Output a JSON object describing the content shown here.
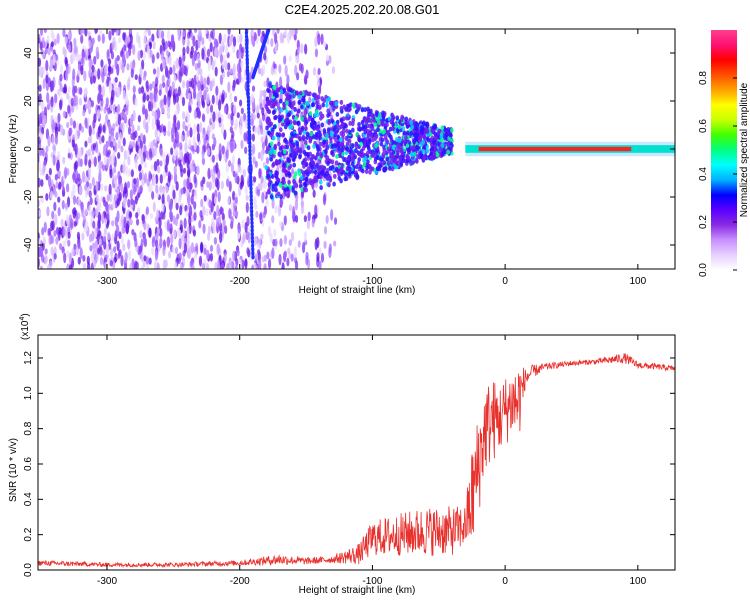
{
  "title": "C2E4.2025.202.20.08.G01",
  "colors": {
    "snr_line": "#e8302c",
    "colorbar": [
      "#ffffff",
      "#e8d0ff",
      "#c890ff",
      "#8a2be2",
      "#5a00ff",
      "#0000ff",
      "#00b0ff",
      "#00ffff",
      "#00ff80",
      "#40ff00",
      "#c8ff00",
      "#ffff00",
      "#ffa000",
      "#ff5000",
      "#ff0000",
      "#ff1070",
      "#ff4090"
    ]
  },
  "chart_data": [
    {
      "type": "heatmap",
      "xlabel": "Height of straight line (km)",
      "ylabel": "Frequency (Hz)",
      "xlim": [
        -352,
        128
      ],
      "ylim": [
        -50,
        50
      ],
      "x_ticks": [
        -300,
        -200,
        -100,
        0,
        100
      ],
      "y_ticks": [
        -40,
        -20,
        0,
        20,
        40
      ],
      "grid": false,
      "colorbar": {
        "label": "Normalized spectral amplitude",
        "range": [
          0,
          1
        ],
        "ticks": [
          "0.0",
          "0.2",
          "0.4",
          "0.6",
          "0.8"
        ]
      }
    },
    {
      "type": "line",
      "xlabel": "Height of straight line (km)",
      "ylabel": "SNR (10 * v/v)",
      "multiplier": "(x10",
      "multiplier_exp": "4",
      "multiplier_close": ")",
      "xlim": [
        -352,
        128
      ],
      "ylim": [
        0,
        1.33
      ],
      "x_ticks": [
        -300,
        -200,
        -100,
        0,
        100
      ],
      "y_ticks": [
        "0.0",
        "0.2",
        "0.4",
        "0.6",
        "0.8",
        "1.0",
        "1.2"
      ],
      "grid": false,
      "series_profile": {
        "x": [
          -352,
          -300,
          -250,
          -200,
          -170,
          -150,
          -130,
          -110,
          -100,
          -80,
          -60,
          -40,
          -30,
          -25,
          -20,
          -15,
          -10,
          -5,
          0,
          5,
          10,
          15,
          20,
          30,
          50,
          70,
          90,
          100,
          128
        ],
        "y": [
          0.04,
          0.03,
          0.03,
          0.04,
          0.06,
          0.05,
          0.06,
          0.09,
          0.18,
          0.2,
          0.22,
          0.22,
          0.25,
          0.4,
          0.6,
          0.8,
          0.85,
          0.85,
          0.9,
          0.95,
          0.95,
          1.08,
          1.12,
          1.15,
          1.17,
          1.18,
          1.2,
          1.16,
          1.14
        ],
        "noise": [
          0.015,
          0.012,
          0.012,
          0.015,
          0.03,
          0.02,
          0.02,
          0.06,
          0.1,
          0.12,
          0.14,
          0.14,
          0.12,
          0.3,
          0.3,
          0.25,
          0.25,
          0.2,
          0.2,
          0.2,
          0.25,
          0.06,
          0.04,
          0.02,
          0.015,
          0.015,
          0.03,
          0.02,
          0.015
        ]
      }
    }
  ]
}
